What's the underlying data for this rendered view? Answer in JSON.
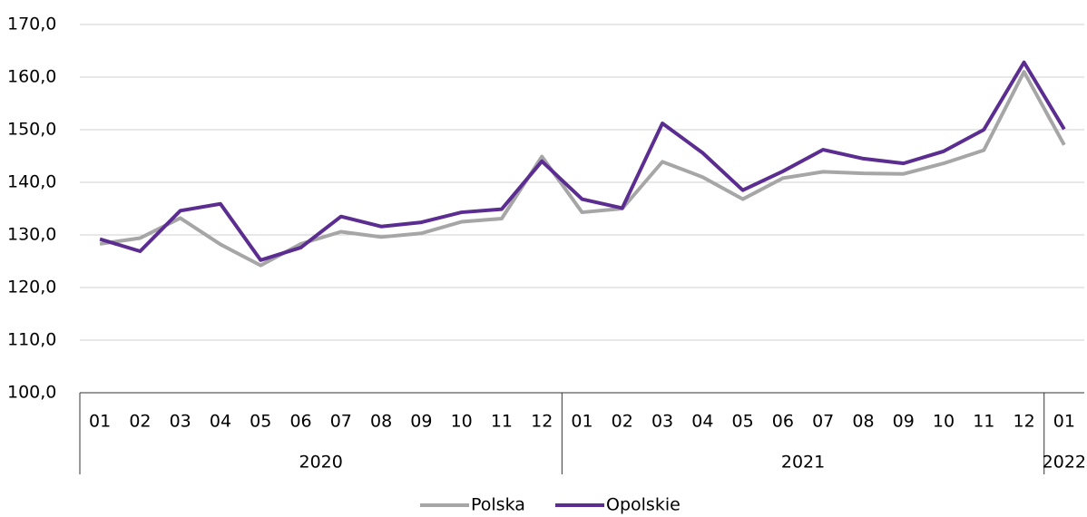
{
  "chart_data": {
    "type": "line",
    "categories": [
      "01",
      "02",
      "03",
      "04",
      "05",
      "06",
      "07",
      "08",
      "09",
      "10",
      "11",
      "12",
      "01",
      "02",
      "03",
      "04",
      "05",
      "06",
      "07",
      "08",
      "09",
      "10",
      "11",
      "12",
      "01"
    ],
    "groups": [
      {
        "label": "2020",
        "count": 12
      },
      {
        "label": "2021",
        "count": 12
      },
      {
        "label": "2022",
        "count": 1
      }
    ],
    "series": [
      {
        "name": "Polska",
        "color": "#a6a6a6",
        "values": [
          128.3,
          129.4,
          133.2,
          128.2,
          124.2,
          128.3,
          130.6,
          129.6,
          130.3,
          132.5,
          133.1,
          144.9,
          134.3,
          135.0,
          143.9,
          141.0,
          136.8,
          140.8,
          142.0,
          141.7,
          141.6,
          143.6,
          146.1,
          161.0,
          147.1
        ]
      },
      {
        "name": "Opolskie",
        "color": "#5c2d91",
        "values": [
          129.2,
          126.9,
          134.6,
          135.9,
          125.2,
          127.6,
          133.5,
          131.6,
          132.4,
          134.3,
          134.9,
          144.0,
          136.8,
          135.1,
          151.2,
          145.6,
          138.5,
          142.1,
          146.2,
          144.5,
          143.6,
          145.9,
          150.0,
          162.8,
          150.1
        ]
      }
    ],
    "ylim": [
      100,
      170
    ],
    "yticks": [
      {
        "value": 100,
        "label": "100,0"
      },
      {
        "value": 110,
        "label": "110,0"
      },
      {
        "value": 120,
        "label": "120,0"
      },
      {
        "value": 130,
        "label": "130,0"
      },
      {
        "value": 140,
        "label": "140,0"
      },
      {
        "value": 150,
        "label": "150,0"
      },
      {
        "value": 160,
        "label": "160,0"
      },
      {
        "value": 170,
        "label": "170,0"
      }
    ],
    "grid": true,
    "legend": "bottom"
  }
}
